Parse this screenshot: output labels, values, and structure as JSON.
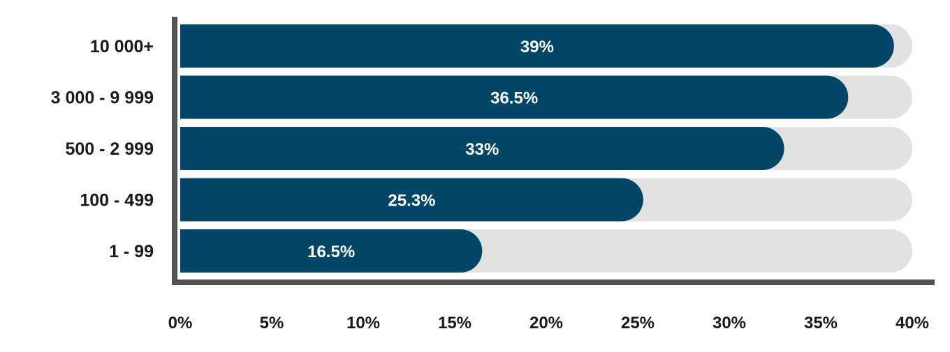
{
  "chart_data": {
    "type": "bar",
    "orientation": "horizontal",
    "categories": [
      "10 000+",
      "3 000 - 9 999",
      "500 - 2 999",
      "100 - 499",
      "1 - 99"
    ],
    "values": [
      39,
      36.5,
      33,
      25.3,
      16.5
    ],
    "value_labels": [
      "39%",
      "36.5%",
      "33%",
      "25.3%",
      "16.5%"
    ],
    "xlim": [
      0,
      40
    ],
    "xticks": [
      0,
      5,
      10,
      15,
      20,
      25,
      30,
      35,
      40
    ],
    "xtick_labels": [
      "0%",
      "5%",
      "10%",
      "15%",
      "20%",
      "25%",
      "30%",
      "35%",
      "40%"
    ],
    "grid": false,
    "background_track": true,
    "colors": {
      "bar": "#014666",
      "track": "#e2e2e2",
      "axis": "#505254",
      "label_inside": "#ffffff",
      "text": "#1a1a1a"
    }
  }
}
